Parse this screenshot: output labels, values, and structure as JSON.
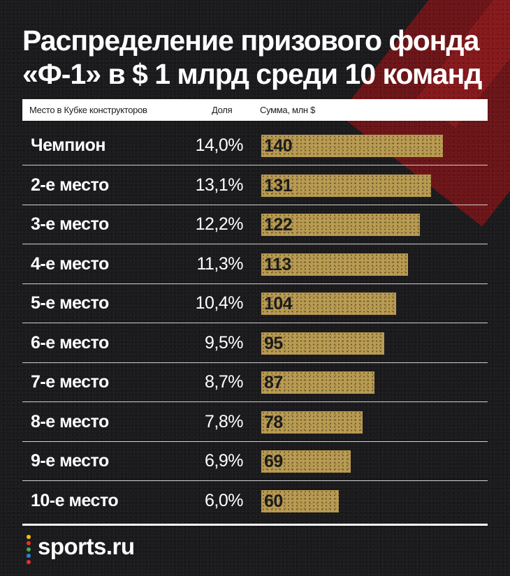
{
  "title": {
    "line1": "Распределение призового фонда",
    "line2": "«Ф-1» в $ 1 млрд среди 10 команд"
  },
  "header": {
    "place": "Место в Кубке конструкторов",
    "share": "Доля",
    "sum": "Сумма, млн $"
  },
  "chart_data": {
    "type": "bar",
    "orientation": "horizontal",
    "categories": [
      "Чемпион",
      "2-е место",
      "3-е место",
      "4-е место",
      "5-е место",
      "6-е место",
      "7-е место",
      "8-е место",
      "9-е место",
      "10-е место"
    ],
    "shares": [
      "14,0%",
      "13,1%",
      "12,2%",
      "11,3%",
      "10,4%",
      "9,5%",
      "8,7%",
      "7,8%",
      "6,9%",
      "6,0%"
    ],
    "values": [
      140,
      131,
      122,
      113,
      104,
      95,
      87,
      78,
      69,
      60
    ],
    "xlim": [
      0,
      140
    ],
    "bar_color": "#b99b52"
  },
  "brand": {
    "name": "sports.ru",
    "icon": "sports-ru-dots-logo",
    "dot_colors": [
      "#f5c400",
      "#e8322b",
      "#3fae49",
      "#2d7fd8",
      "#e8322b"
    ]
  },
  "colors": {
    "background": "#1b1b1d",
    "accent_red": "#7a1418",
    "text": "#ffffff"
  }
}
